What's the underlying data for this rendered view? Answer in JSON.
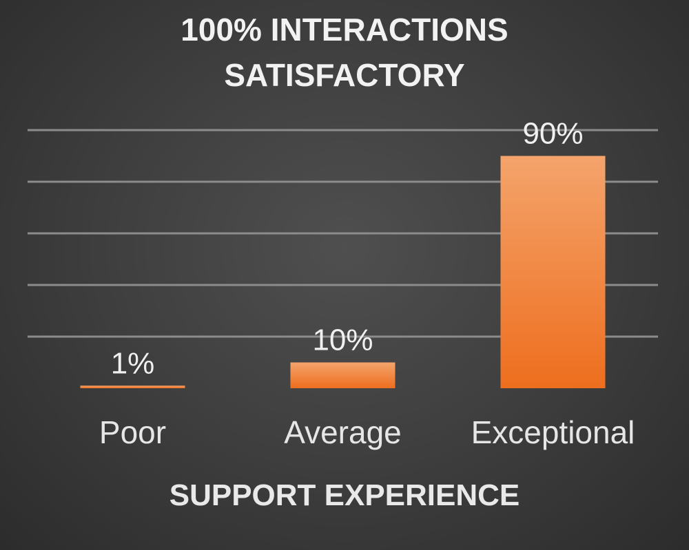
{
  "chart_data": {
    "type": "bar",
    "title_lines": [
      "100% INTERACTIONS",
      "SATISFACTORY"
    ],
    "xlabel": "SUPPORT EXPERIENCE",
    "ylabel": "",
    "categories": [
      "Poor",
      "Average",
      "Exceptional"
    ],
    "values": [
      1,
      10,
      90
    ],
    "data_labels": [
      "1%",
      "10%",
      "90%"
    ],
    "ylim": [
      0,
      100
    ],
    "grid": true,
    "gridlines": [
      20,
      40,
      60,
      80,
      100
    ],
    "colors": {
      "bar_top": "#f4a46c",
      "bar_bottom": "#ee6e1e",
      "gridline": "#8c8c8c",
      "text": "#f0f0f0"
    }
  }
}
